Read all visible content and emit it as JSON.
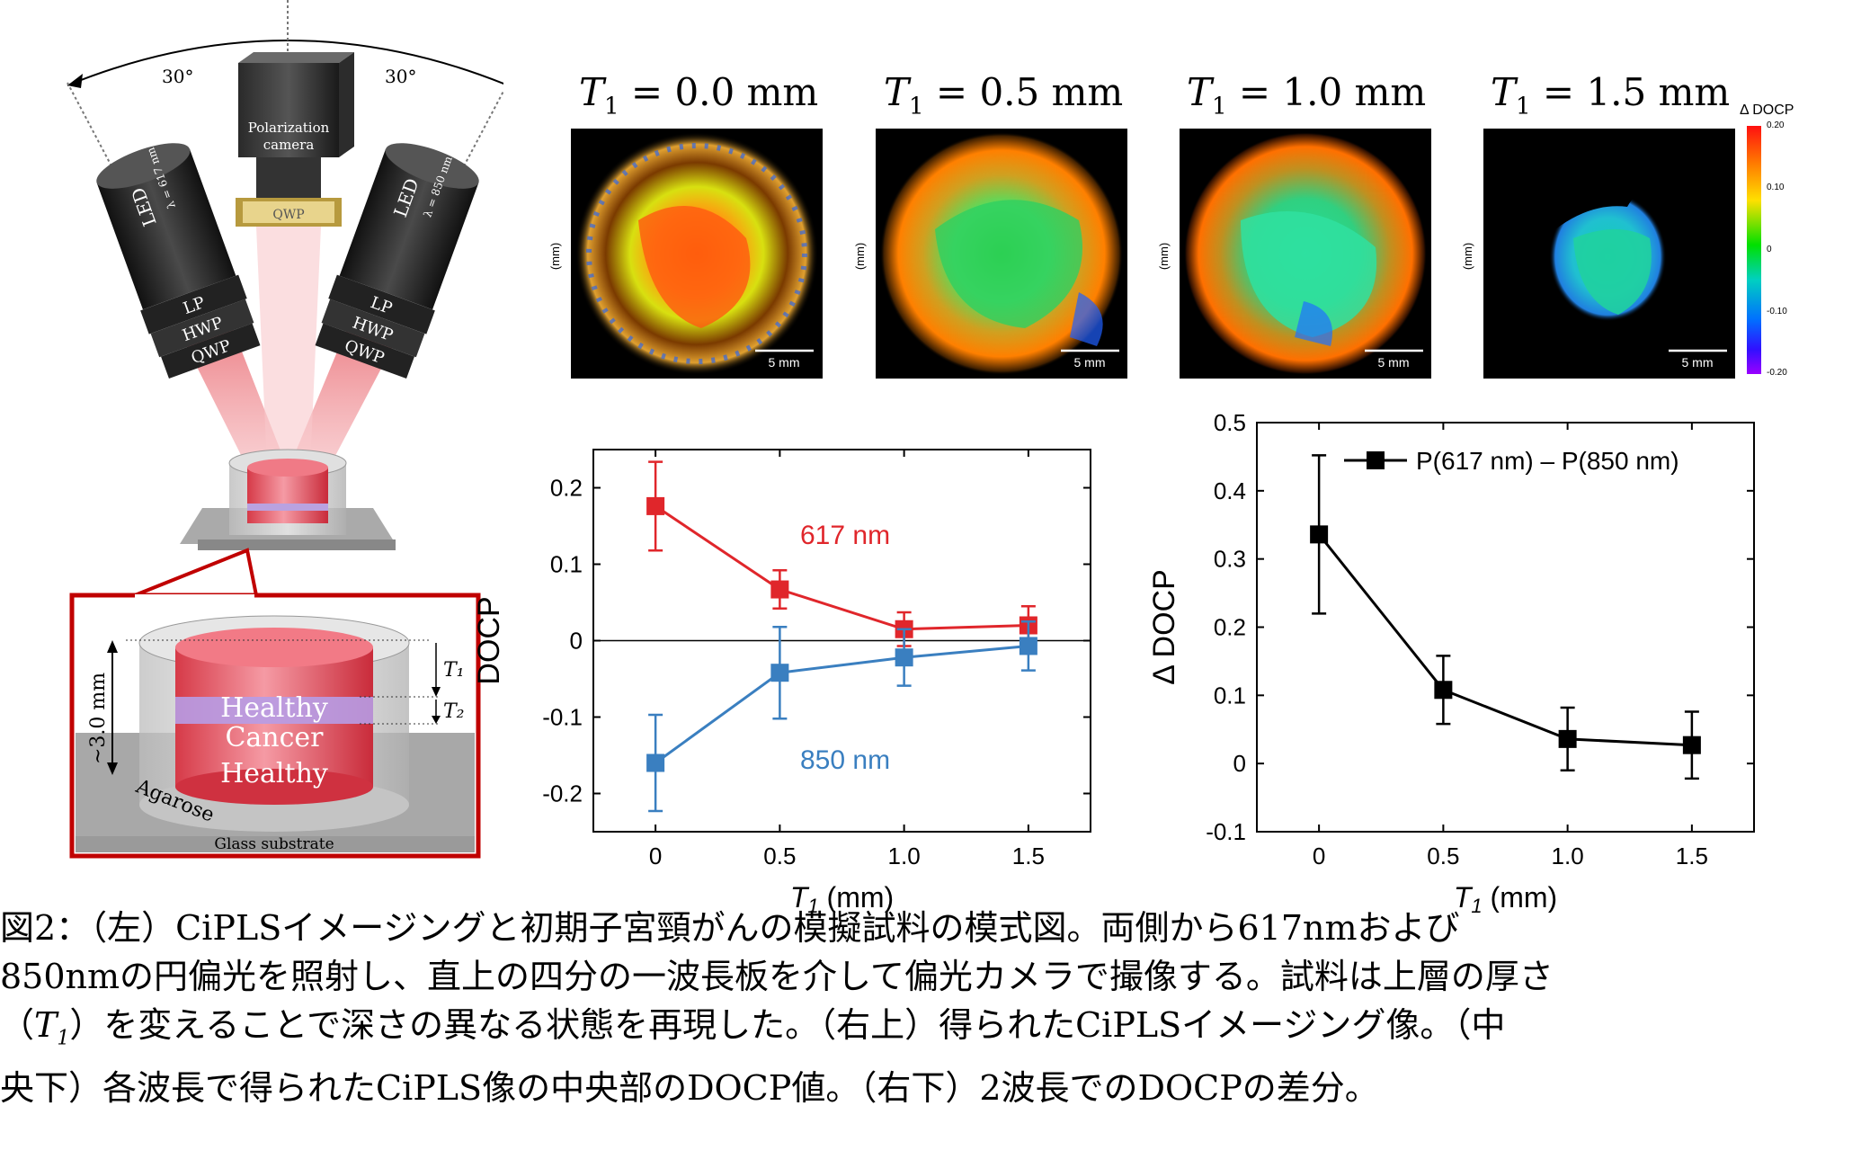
{
  "schematic": {
    "angle_left": "30°",
    "angle_right": "30°",
    "camera_label_line1": "Polarization",
    "camera_label_line2": "camera",
    "camera_qwp": "QWP",
    "led_left_label": "LED",
    "led_left_wavelength": "λ = 617 nm",
    "led_right_label": "LED",
    "led_right_wavelength": "λ = 850 nm",
    "lp": "LP",
    "hwp": "HWP",
    "qwp": "QWP",
    "inset_depth": "~3.0 mm",
    "t1": "T₁",
    "t2": "T₂",
    "layer_top": "Healthy",
    "layer_mid": "Cancer",
    "layer_bottom": "Healthy",
    "agarose": "Agarose",
    "substrate": "Glass substrate"
  },
  "panels": [
    {
      "var": "T",
      "sub": "1",
      "eq": " = 0.0 mm",
      "scale": "5 mm",
      "ylab": "(mm)"
    },
    {
      "var": "T",
      "sub": "1",
      "eq": " = 0.5 mm",
      "scale": "5 mm",
      "ylab": "(mm)"
    },
    {
      "var": "T",
      "sub": "1",
      "eq": " = 1.0 mm",
      "scale": "5 mm",
      "ylab": "(mm)"
    },
    {
      "var": "T",
      "sub": "1",
      "eq": " = 1.5 mm",
      "scale": "5 mm",
      "ylab": "(mm)"
    }
  ],
  "colorbar": {
    "title": "Δ DOCP",
    "ticks": [
      "0.20",
      "0.10",
      "0",
      "-0.10",
      "-0.20"
    ]
  },
  "chart_data": [
    {
      "type": "line",
      "ylabel": "DOCP",
      "xlabel": "T1 (mm)",
      "x": [
        0,
        0.5,
        1.0,
        1.5
      ],
      "xticks": [
        "0",
        "0.5",
        "1.0",
        "1.5"
      ],
      "yticks": [
        "0.2",
        "0.1",
        "0",
        "-0.1",
        "-0.2"
      ],
      "xlim": [
        -0.25,
        1.75
      ],
      "ylim": [
        -0.25,
        0.25
      ],
      "zero_line": true,
      "series": [
        {
          "name": "617 nm",
          "color": "#e0262b",
          "values": [
            0.176,
            0.067,
            0.015,
            0.02
          ],
          "err": [
            0.058,
            0.025,
            0.022,
            0.025
          ]
        },
        {
          "name": "850 nm",
          "color": "#3a7fc0",
          "values": [
            -0.16,
            -0.042,
            -0.022,
            -0.007
          ],
          "err": [
            0.063,
            0.06,
            0.037,
            0.032
          ]
        }
      ]
    },
    {
      "type": "line",
      "ylabel": "Δ DOCP",
      "xlabel": "T1 (mm)",
      "x": [
        0,
        0.5,
        1.0,
        1.5
      ],
      "xticks": [
        "0",
        "0.5",
        "1.0",
        "1.5"
      ],
      "yticks": [
        "0.5",
        "0.4",
        "0.3",
        "0.2",
        "0.1",
        "0",
        "-0.1"
      ],
      "xlim": [
        -0.25,
        1.75
      ],
      "ylim": [
        -0.1,
        0.5
      ],
      "legend": "top-right",
      "series": [
        {
          "name": "P(617 nm) – P(850 nm)",
          "color": "#000000",
          "values": [
            0.336,
            0.108,
            0.036,
            0.027
          ],
          "err": [
            0.116,
            0.05,
            0.046,
            0.049
          ]
        }
      ]
    }
  ],
  "caption": {
    "line1": "図2：（左）CiPLSイメージングと初期子宮頸がんの模擬試料の模式図。両側から617nmおよび",
    "line2": "850nmの円偏光を照射し、直上の四分の一波長板を介して偏光カメラで撮像する。試料は上層の厚さ",
    "line3_a": "（",
    "line3_var": "T",
    "line3_sub": "1",
    "line3_b": "）を変えることで深さの異なる状態を再現した。（右上）得られたCiPLSイメージング像。（中",
    "line4": "央下）各波長で得られたCiPLS像の中央部のDOCP値。（右下）2波長でのDOCPの差分。"
  }
}
